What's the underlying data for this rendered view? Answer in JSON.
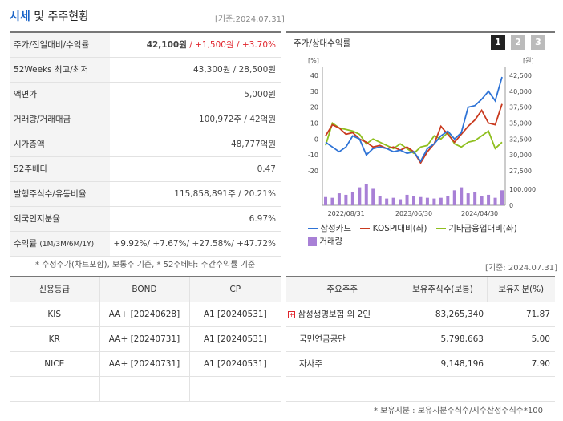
{
  "header": {
    "title_highlight": "시세",
    "title_rest": " 및 주주현황",
    "base_date": "[기준:2024.07.31]"
  },
  "quote_table": [
    {
      "label": "주가/전일대비/수익률",
      "price": "42,100원",
      "sep1": " / ",
      "change": "+1,500원",
      "sep2": " / ",
      "rate": "+3.70%"
    },
    {
      "label": "52Weeks 최고/최저",
      "value": "43,300원 / 28,500원"
    },
    {
      "label": "액면가",
      "value": "5,000원"
    },
    {
      "label": "거래량/거래대금",
      "value": "100,972주 / 42억원"
    },
    {
      "label": "시가총액",
      "value": "48,777억원"
    },
    {
      "label": "52주베타",
      "value": "0.47"
    },
    {
      "label": "발행주식수/유동비율",
      "value": "115,858,891주 / 20.21%"
    },
    {
      "label": "외국인지분율",
      "value": "6.97%"
    },
    {
      "label": "수익률",
      "label_small": "(1M/3M/6M/1Y)",
      "value": "+9.92%/ +7.67%/ +27.58%/ +47.72%"
    }
  ],
  "note1": "* 수정주가(차트포함), 보통주 기준, * 52주베타: 주간수익률 기준",
  "chart_title": "주가/상대수익률",
  "pages": [
    "1",
    "2",
    "3"
  ],
  "chart_data": {
    "type": "line",
    "left_unit": "[%]",
    "right_unit": "[원]",
    "left_ticks": [
      "40",
      "30",
      "20",
      "10",
      "0",
      "-10",
      "-20"
    ],
    "right_ticks": [
      "42,500",
      "40,000",
      "37,500",
      "35,000",
      "32,500",
      "30,000",
      "27,500"
    ],
    "vol_ticks": [
      "100,000",
      "0"
    ],
    "x_ticks": [
      "2022/08/31",
      "2023/06/30",
      "2024/04/30"
    ],
    "series": [
      {
        "name": "삼성카드",
        "color": "#2e73d6",
        "values": [
          -2,
          -5,
          -8,
          -5,
          2,
          0,
          -10,
          -6,
          -5,
          -6,
          -8,
          -7,
          -9,
          -8,
          -14,
          -6,
          -3,
          2,
          5,
          0,
          4,
          20,
          21,
          25,
          30,
          24,
          39
        ]
      },
      {
        "name": "KOSPI대비(좌)",
        "color": "#c93a1f",
        "values": [
          2,
          9,
          7,
          3,
          4,
          0,
          -2,
          -5,
          -4,
          -6,
          -5,
          -7,
          -5,
          -8,
          -15,
          -8,
          -3,
          8,
          3,
          -2,
          3,
          8,
          12,
          18,
          10,
          9,
          22
        ]
      },
      {
        "name": "기타금융업대비(좌)",
        "color": "#8fbf1f",
        "values": [
          -4,
          10,
          7,
          6,
          5,
          3,
          -3,
          0,
          -2,
          -4,
          -6,
          -3,
          -6,
          -9,
          -5,
          -4,
          2,
          0,
          4,
          -3,
          -5,
          -2,
          -1,
          2,
          5,
          -6,
          -2
        ]
      },
      {
        "name": "거래량",
        "color": "#a880d6",
        "values": [
          55,
          50,
          80,
          70,
          90,
          120,
          140,
          110,
          60,
          45,
          50,
          40,
          70,
          60,
          55,
          50,
          45,
          50,
          60,
          100,
          120,
          80,
          90,
          60,
          70,
          50,
          100
        ]
      }
    ]
  },
  "note2": "[기준: 2024.07.31]",
  "credit_table": {
    "headers": [
      "신용등급",
      "BOND",
      "CP"
    ],
    "rows": [
      [
        "KIS",
        "AA+ [20240628]",
        "A1 [20240531]"
      ],
      [
        "KR",
        "AA+ [20240731]",
        "A1 [20240531]"
      ],
      [
        "NICE",
        "AA+ [20240731]",
        "A1 [20240531]"
      ]
    ]
  },
  "holders_table": {
    "headers": [
      "주요주주",
      "보유주식수(보통)",
      "보유지분(%)"
    ],
    "rows": [
      {
        "name": "삼성생명보험 외 2인",
        "shares": "83,265,340",
        "pct": "71.87"
      },
      {
        "name": "국민연금공단",
        "shares": "5,798,663",
        "pct": "5.00"
      },
      {
        "name": "자사주",
        "shares": "9,148,196",
        "pct": "7.90"
      }
    ]
  },
  "note3": "* 보유지분 : 보유지분주식수/지수산정주식수*100",
  "colors": {
    "accent": "#1a64c8",
    "positive": "#e0242c",
    "page_active": "#222222",
    "page_inactive": "#bbbbbb"
  }
}
